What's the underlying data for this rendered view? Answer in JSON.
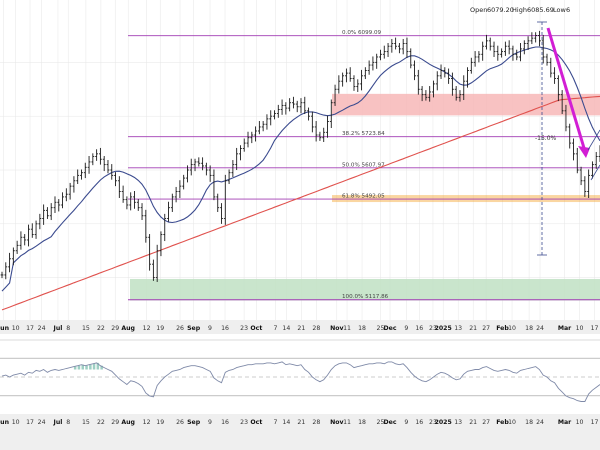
{
  "header": {
    "open_label": "Open",
    "open_value": "6079.20",
    "high_label": "High",
    "high_value": "6085.69",
    "low_label": "Low",
    "low_value": "6"
  },
  "colors": {
    "price_bar": "#1a1a1a",
    "ma_short": "#3b4b8f",
    "ma_long": "#e0524e",
    "fib_line": "#a13bb3",
    "fib_orange": "#f3a52e",
    "resistance_zone": "#f7b7b7",
    "support_zone": "#bfe0c3",
    "decline_arrow": "#d21ed4",
    "indicator_line": "#7f8aa8",
    "grid": "#e6e6e6",
    "axis_bg": "#efefef"
  },
  "chart_data": {
    "type": "ohlc",
    "ylim": [
      5050,
      6150
    ],
    "fib_levels": [
      {
        "pct": "0.0%",
        "value": 6099.09,
        "label": "0.0%  6099.09"
      },
      {
        "pct": "38.2%",
        "value": 5723.84,
        "label": "38.2%  5723.84"
      },
      {
        "pct": "50.0%",
        "value": 5607.97,
        "label": "50.0%  5607.97"
      },
      {
        "pct": "61.8%",
        "value": 5492.05,
        "label": "61.8%  5492.05"
      },
      {
        "pct": "100.0%",
        "value": 5117.86,
        "label": "100.0%  5117.86"
      }
    ],
    "decline_label": "-15.0%",
    "resistance_zone": [
      5803,
      5883
    ],
    "support_zone": [
      5115,
      5195
    ],
    "x_axis_ticks": [
      "Jun",
      "10",
      "17",
      "24",
      "Jul",
      "8",
      "15",
      "22",
      "29",
      "Aug",
      "12",
      "19",
      "26",
      "Sep",
      "9",
      "16",
      "23",
      "Oct",
      "7",
      "14",
      "21",
      "28",
      "Nov",
      "11",
      "18",
      "25",
      "Dec",
      "9",
      "16",
      "23",
      "2025",
      "13",
      "21",
      "27",
      "Feb",
      "10",
      "18",
      "24",
      "Mar",
      "10",
      "17"
    ],
    "month_ticks": [
      "Jun",
      "Jul",
      "Aug",
      "Sep",
      "Oct",
      "Nov",
      "Dec",
      "2025",
      "Feb",
      "Mar"
    ],
    "price_closes": [
      5210,
      5240,
      5270,
      5300,
      5320,
      5350,
      5340,
      5380,
      5360,
      5400,
      5420,
      5450,
      5430,
      5460,
      5480,
      5470,
      5500,
      5510,
      5540,
      5560,
      5580,
      5590,
      5610,
      5630,
      5650,
      5660,
      5640,
      5620,
      5600,
      5580,
      5560,
      5520,
      5490,
      5470,
      5500,
      5480,
      5460,
      5430,
      5350,
      5250,
      5200,
      5300,
      5360,
      5420,
      5460,
      5500,
      5520,
      5540,
      5570,
      5600,
      5620,
      5630,
      5625,
      5615,
      5600,
      5580,
      5500,
      5460,
      5420,
      5560,
      5590,
      5620,
      5660,
      5680,
      5700,
      5720,
      5730,
      5745,
      5760,
      5770,
      5790,
      5800,
      5810,
      5825,
      5840,
      5830,
      5850,
      5845,
      5835,
      5850,
      5820,
      5800,
      5760,
      5730,
      5720,
      5740,
      5780,
      5850,
      5900,
      5930,
      5950,
      5960,
      5940,
      5910,
      5920,
      5950,
      5970,
      5990,
      6000,
      6020,
      6030,
      6040,
      6060,
      6070,
      6060,
      6050,
      6070,
      6040,
      5990,
      5950,
      5900,
      5880,
      5870,
      5890,
      5920,
      5950,
      5970,
      5960,
      5940,
      5900,
      5870,
      5880,
      5930,
      5970,
      6000,
      6020,
      6030,
      6060,
      6080,
      6060,
      6040,
      6030,
      6040,
      6060,
      6050,
      6030,
      6020,
      6050,
      6070,
      6080,
      6090,
      6100,
      6080,
      6020,
      6000,
      5960,
      5940,
      5880,
      5820,
      5760,
      5700,
      5660,
      5600,
      5560,
      5520,
      5580,
      5620,
      5650,
      5670
    ],
    "indicator_values": [
      51,
      52,
      50,
      52,
      53,
      54,
      52,
      55,
      54,
      57,
      56,
      58,
      55,
      57,
      58,
      57,
      58,
      59,
      60,
      61,
      62,
      63,
      62,
      63,
      64,
      65,
      62,
      60,
      58,
      56,
      52,
      48,
      45,
      42,
      46,
      45,
      43,
      40,
      33,
      30,
      29,
      41,
      46,
      50,
      53,
      56,
      57,
      58,
      60,
      61,
      62,
      62,
      61,
      60,
      58,
      56,
      49,
      46,
      44,
      55,
      57,
      58,
      60,
      61,
      62,
      63,
      63,
      64,
      64,
      64,
      65,
      65,
      64,
      65,
      66,
      63,
      64,
      63,
      62,
      63,
      58,
      55,
      50,
      47,
      45,
      47,
      52,
      58,
      62,
      64,
      65,
      65,
      63,
      60,
      61,
      62,
      63,
      64,
      64,
      65,
      65,
      64,
      66,
      66,
      64,
      63,
      64,
      60,
      55,
      51,
      48,
      46,
      45,
      47,
      50,
      53,
      55,
      54,
      52,
      49,
      47,
      48,
      53,
      56,
      57,
      58,
      58,
      60,
      61,
      59,
      57,
      56,
      57,
      58,
      57,
      55,
      54,
      57,
      58,
      59,
      60,
      61,
      58,
      52,
      50,
      46,
      44,
      38,
      34,
      30,
      28,
      27,
      25,
      24,
      24,
      32,
      36,
      39,
      42
    ]
  },
  "indicator": {
    "ylim": [
      15,
      85
    ],
    "upper_level": 70,
    "mid_level": 50,
    "lower_level": 30
  }
}
